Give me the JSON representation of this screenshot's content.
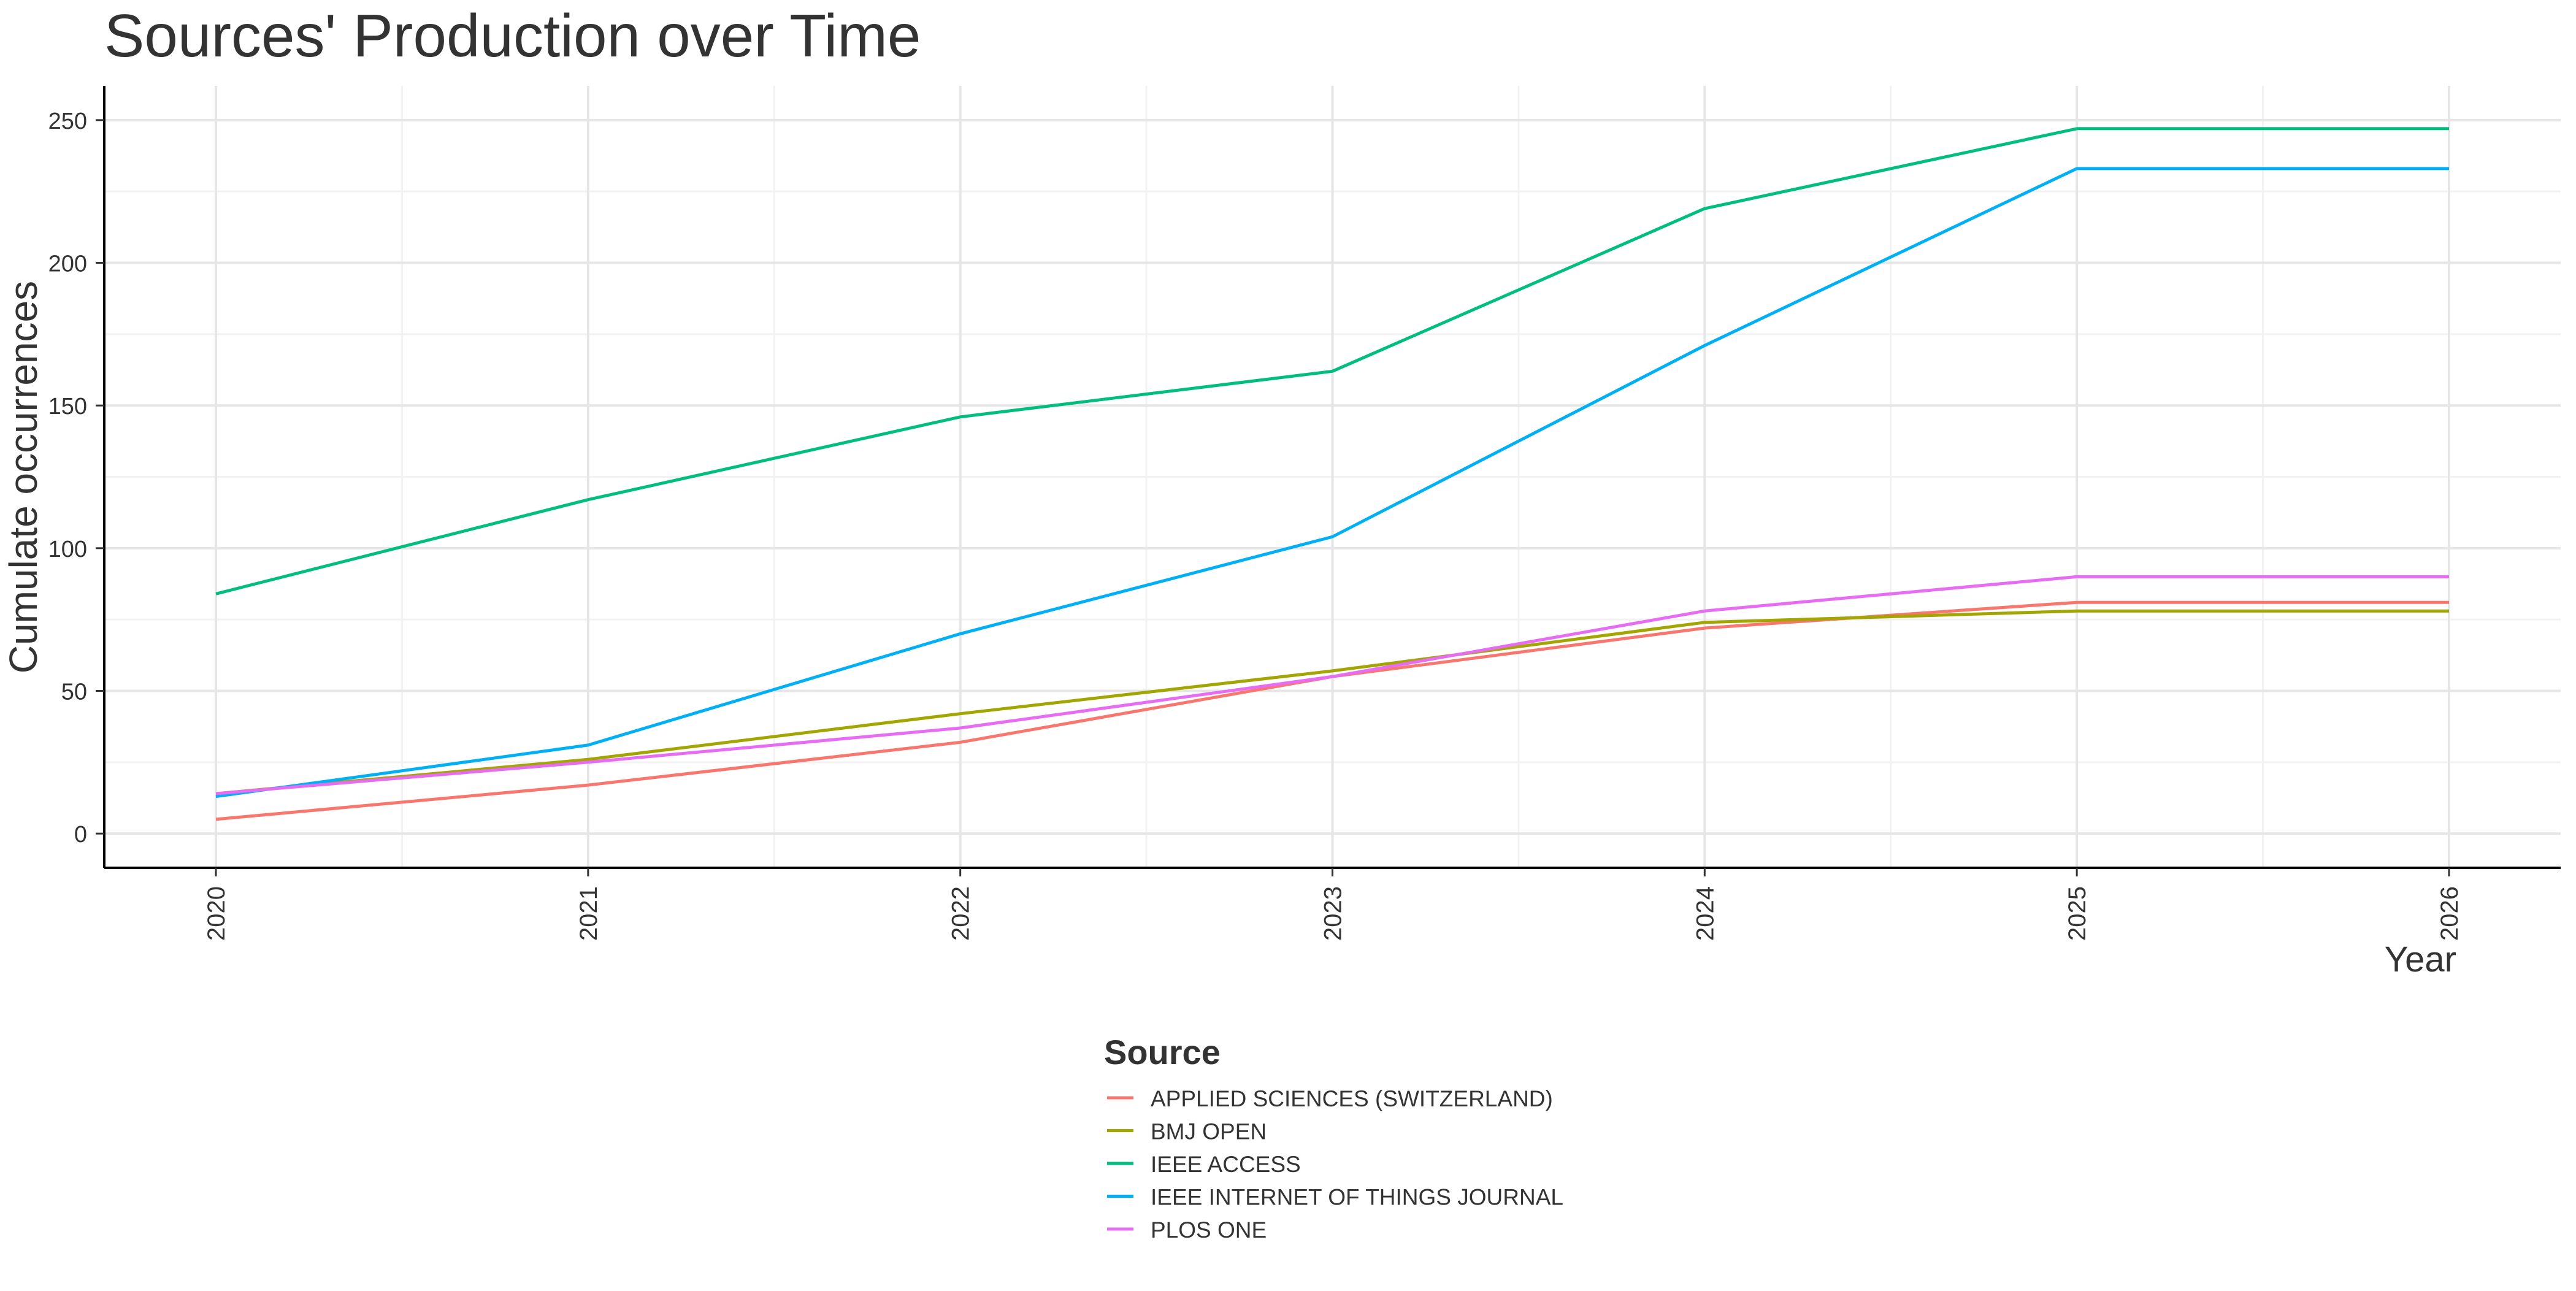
{
  "chart_data": {
    "type": "line",
    "title": "Sources' Production over Time",
    "xlabel": "Year",
    "ylabel": "Cumulate occurrences",
    "x": [
      2020,
      2021,
      2022,
      2023,
      2024,
      2025,
      2026
    ],
    "xlim": [
      2019.7,
      2026.3
    ],
    "ylim": [
      -12,
      262
    ],
    "yticks": [
      0,
      50,
      100,
      150,
      200,
      250
    ],
    "grid": true,
    "legend": {
      "title": "Source",
      "position": "bottom"
    },
    "series": [
      {
        "name": "APPLIED SCIENCES (SWITZERLAND)",
        "color": "#F8766D",
        "values": [
          5,
          17,
          32,
          55,
          72,
          81,
          81
        ]
      },
      {
        "name": "BMJ OPEN",
        "color": "#A3A500",
        "values": [
          14,
          26,
          42,
          57,
          74,
          78,
          78
        ]
      },
      {
        "name": "IEEE ACCESS",
        "color": "#00BF7D",
        "values": [
          84,
          117,
          146,
          162,
          219,
          247,
          247
        ]
      },
      {
        "name": "IEEE INTERNET OF THINGS JOURNAL",
        "color": "#00B0F6",
        "values": [
          13,
          31,
          70,
          104,
          171,
          233,
          233
        ]
      },
      {
        "name": "PLOS ONE",
        "color": "#E76BF3",
        "values": [
          14,
          25,
          37,
          55,
          78,
          90,
          90
        ]
      }
    ]
  }
}
